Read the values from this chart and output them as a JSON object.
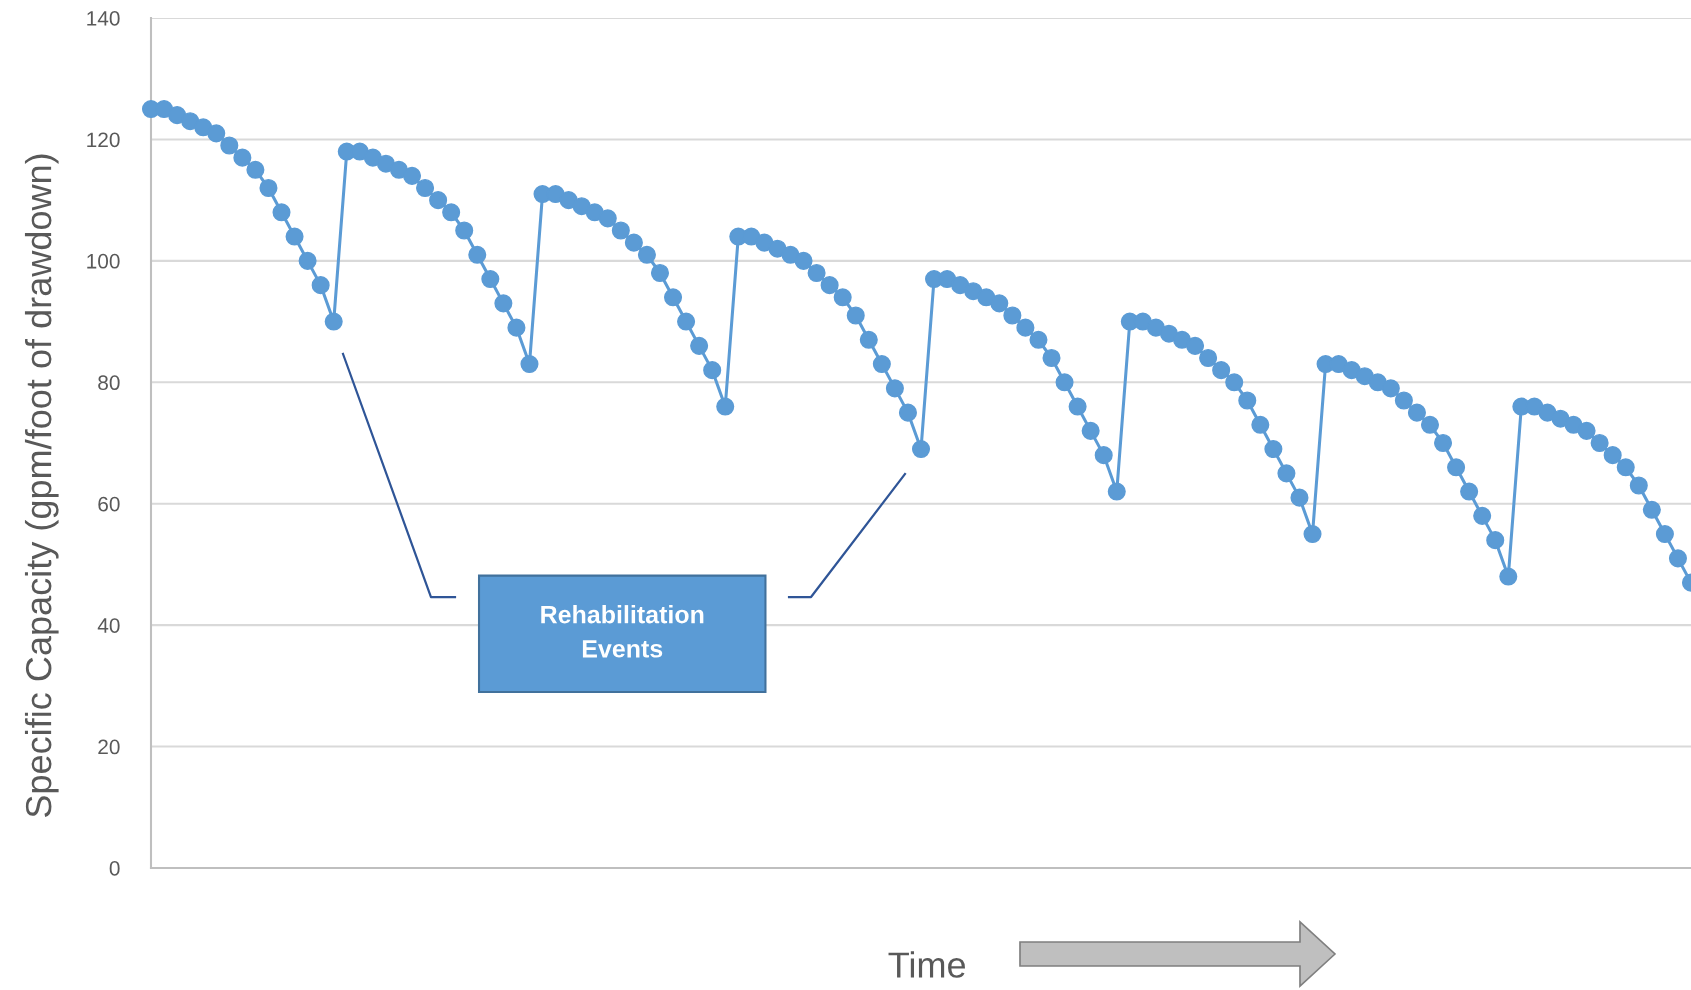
{
  "chart_data": {
    "type": "line",
    "xlabel": "Time",
    "ylabel": "Specific Capacity (gpm/foot of drawdown)",
    "annotations": [
      "Rehabilitation Events"
    ],
    "categories": [
      null,
      null,
      null,
      null,
      null,
      null,
      null,
      null,
      null,
      null,
      null,
      null,
      null,
      null,
      null,
      null,
      null,
      null,
      null,
      null,
      null,
      null,
      null,
      null,
      null,
      null,
      null,
      null,
      null,
      null,
      null,
      null,
      null,
      null,
      null,
      null,
      null,
      null,
      null,
      null,
      null,
      null,
      null,
      null,
      null,
      null,
      null,
      null,
      null,
      null,
      null,
      null,
      null,
      null,
      null,
      null,
      null,
      null,
      null,
      null,
      null,
      null,
      null,
      null,
      null,
      null,
      null,
      null,
      null,
      null,
      null,
      null,
      null,
      null,
      null,
      null,
      null,
      null,
      null,
      null,
      null,
      null,
      null,
      null,
      null,
      null,
      null,
      null,
      null,
      null,
      null,
      null,
      null,
      null,
      null,
      null,
      null,
      null,
      null,
      null,
      null,
      null,
      null,
      null,
      null,
      null,
      null,
      null,
      null,
      null,
      null,
      null,
      null,
      null,
      null,
      null,
      null,
      null,
      null
    ],
    "series": [
      {
        "color": "#5b9bd5",
        "values": [
          125,
          125,
          124,
          123,
          122,
          121,
          119,
          117,
          115,
          112,
          108,
          104,
          100,
          96,
          90,
          118,
          118,
          117,
          116,
          115,
          114,
          112,
          110,
          108,
          105,
          101,
          97,
          93,
          89,
          83,
          111,
          111,
          110,
          109,
          108,
          107,
          105,
          103,
          101,
          98,
          94,
          90,
          86,
          82,
          76,
          104,
          104,
          103,
          102,
          101,
          100,
          98,
          96,
          94,
          91,
          87,
          83,
          79,
          75,
          69,
          97,
          97,
          96,
          95,
          94,
          93,
          91,
          89,
          87,
          84,
          80,
          76,
          72,
          68,
          62,
          90,
          90,
          89,
          88,
          87,
          86,
          84,
          82,
          80,
          77,
          73,
          69,
          65,
          61,
          55,
          83,
          83,
          82,
          81,
          80,
          79,
          77,
          75,
          73,
          70,
          66,
          62,
          58,
          54,
          48,
          76,
          76,
          75,
          74,
          73,
          72,
          70,
          68,
          66,
          63,
          59,
          55,
          51,
          47
        ]
      }
    ],
    "ylim": [
      0,
      140
    ],
    "yticks": [
      0,
      20,
      40,
      60,
      80,
      100,
      120,
      140
    ],
    "grid": "y",
    "marker": "circle",
    "line_style": "solid"
  }
}
